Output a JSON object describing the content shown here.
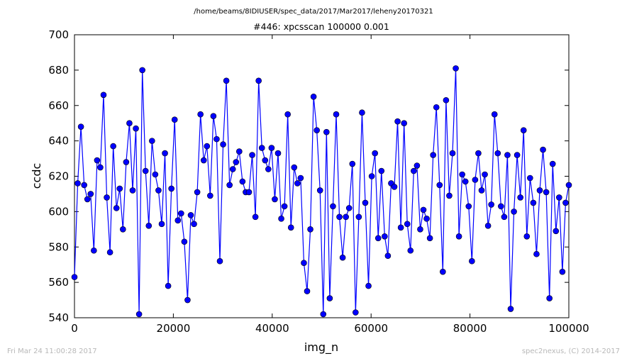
{
  "suptitle": "/home/beams/8IDIUSER/spec_data/2017/Mar2017/leheny20170321",
  "footer_left": "Fri Mar 24 11:00:28 2017",
  "footer_right": "spec2nexus, (C) 2014-2017",
  "colors": {
    "series": "#0000ff",
    "marker": "#0000ff"
  },
  "chart_data": {
    "type": "line",
    "title": "#446: xpcsscan 100000 0.001",
    "xlabel": "img_n",
    "ylabel": "ccdc",
    "xlim": [
      0,
      100000
    ],
    "ylim": [
      540,
      700
    ],
    "xticks": [
      "0",
      "20000",
      "40000",
      "60000",
      "80000",
      "100000"
    ],
    "yticks": [
      "540",
      "560",
      "580",
      "600",
      "620",
      "640",
      "660",
      "680",
      "700"
    ],
    "grid": false,
    "series": [
      {
        "markers": true,
        "y": [
          563,
          616,
          648,
          615,
          607,
          610,
          578,
          629,
          625,
          666,
          608,
          577,
          637,
          602,
          613,
          590,
          628,
          650,
          612,
          647,
          542,
          680,
          623,
          592,
          640,
          621,
          612,
          593,
          633,
          558,
          613,
          652,
          595,
          599,
          583,
          550,
          598,
          593,
          611,
          655,
          629,
          637,
          609,
          654,
          641,
          572,
          638,
          674,
          615,
          624,
          628,
          634,
          617,
          611,
          611,
          632,
          597,
          674,
          636,
          629,
          624,
          636,
          607,
          633,
          596,
          603,
          655,
          591,
          625,
          616,
          619,
          571,
          555,
          590,
          665,
          646,
          612,
          542,
          645,
          551,
          603,
          655,
          597,
          574,
          597,
          602,
          627,
          543,
          597,
          656,
          605,
          558,
          620,
          633,
          585,
          623,
          586,
          575,
          616,
          614,
          651,
          591,
          650,
          593,
          578,
          623,
          626,
          590,
          601,
          596,
          585,
          632,
          659,
          615,
          566,
          663,
          609,
          633,
          681,
          586,
          621,
          617,
          603,
          572,
          618,
          633,
          612,
          621,
          592,
          604,
          655,
          633,
          603,
          597,
          632,
          545,
          600,
          632,
          608,
          646,
          586,
          619,
          605,
          576,
          612,
          635,
          611,
          551,
          627,
          589,
          608,
          566,
          605,
          615
        ]
      }
    ]
  }
}
